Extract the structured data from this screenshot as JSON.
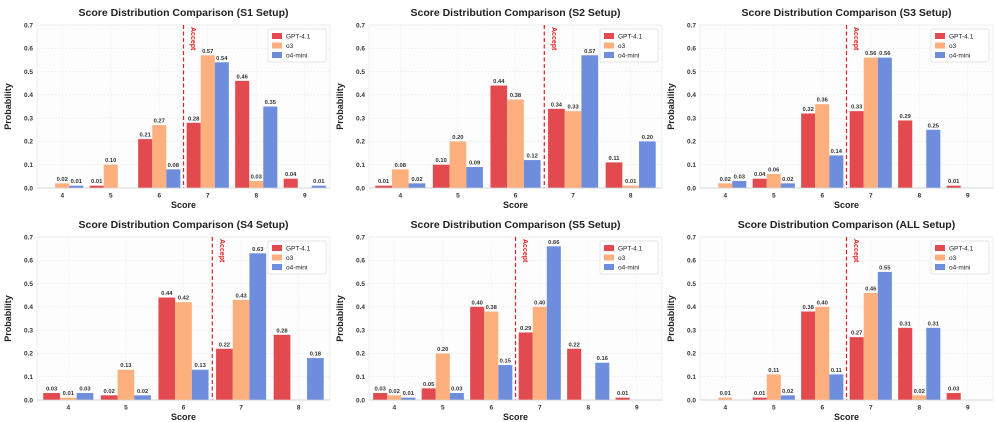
{
  "colors": {
    "GPT-4.1": "#e24a4f",
    "o3": "#fdb07e",
    "o4-mini": "#6f8ddd",
    "accept_line": "#e02020"
  },
  "chart_data": [
    {
      "type": "bar",
      "title": "Score Distribution Comparison (S1 Setup)",
      "xlabel": "Score",
      "ylabel": "Probability",
      "ylim": [
        0,
        0.7
      ],
      "yticks": [
        "0.0",
        "0.1",
        "0.2",
        "0.3",
        "0.4",
        "0.5",
        "0.6",
        "0.7"
      ],
      "categories": [
        "4",
        "5",
        "6",
        "7",
        "8",
        "9"
      ],
      "accept_label": "Accept",
      "accept_position": 6.5,
      "legend_position": "top-right",
      "series": [
        {
          "name": "GPT-4.1",
          "values": [
            null,
            0.01,
            0.21,
            0.28,
            0.46,
            0.04
          ],
          "labels": [
            "",
            "0.01",
            "0.21",
            "0.28",
            "0.46",
            "0.04"
          ]
        },
        {
          "name": "o3",
          "values": [
            0.02,
            0.1,
            0.27,
            0.57,
            0.03,
            null
          ],
          "labels": [
            "0.02",
            "0.10",
            "0.27",
            "0.57",
            "0.03",
            ""
          ]
        },
        {
          "name": "o4-mini",
          "values": [
            0.01,
            null,
            0.08,
            0.54,
            0.35,
            0.01
          ],
          "labels": [
            "0.01",
            "",
            "0.08",
            "0.54",
            "0.35",
            "0.01"
          ]
        }
      ]
    },
    {
      "type": "bar",
      "title": "Score Distribution Comparison (S2 Setup)",
      "xlabel": "Score",
      "ylabel": "Probability",
      "ylim": [
        0,
        0.7
      ],
      "yticks": [
        "0.0",
        "0.1",
        "0.2",
        "0.3",
        "0.4",
        "0.5",
        "0.6",
        "0.7"
      ],
      "categories": [
        "4",
        "5",
        "6",
        "7",
        "8"
      ],
      "accept_label": "Accept",
      "accept_position": 6.5,
      "legend_position": "top-right",
      "series": [
        {
          "name": "GPT-4.1",
          "values": [
            0.01,
            0.1,
            0.44,
            0.34,
            0.11
          ],
          "labels": [
            "0.01",
            "0.10",
            "0.44",
            "0.34",
            "0.11"
          ]
        },
        {
          "name": "o3",
          "values": [
            0.08,
            0.2,
            0.38,
            0.33,
            0.01
          ],
          "labels": [
            "0.08",
            "0.20",
            "0.38",
            "0.33",
            "0.01"
          ]
        },
        {
          "name": "o4-mini",
          "values": [
            0.02,
            0.09,
            0.12,
            0.57,
            0.2
          ],
          "labels": [
            "0.02",
            "0.09",
            "0.12",
            "0.57",
            "0.20"
          ]
        }
      ]
    },
    {
      "type": "bar",
      "title": "Score Distribution Comparison (S3 Setup)",
      "xlabel": "Score",
      "ylabel": "Probability",
      "ylim": [
        0,
        0.7
      ],
      "yticks": [
        "0.0",
        "0.1",
        "0.2",
        "0.3",
        "0.4",
        "0.5",
        "0.6",
        "0.7"
      ],
      "categories": [
        "4",
        "5",
        "6",
        "7",
        "8",
        "9"
      ],
      "accept_label": "Accept",
      "accept_position": 6.5,
      "legend_position": "top-right",
      "series": [
        {
          "name": "GPT-4.1",
          "values": [
            null,
            0.04,
            0.32,
            0.33,
            0.29,
            0.01
          ],
          "labels": [
            "",
            "0.04",
            "0.32",
            "0.33",
            "0.29",
            "0.01"
          ]
        },
        {
          "name": "o3",
          "values": [
            0.02,
            0.06,
            0.36,
            0.56,
            null,
            null
          ],
          "labels": [
            "0.02",
            "0.06",
            "0.36",
            "0.56",
            "",
            ""
          ]
        },
        {
          "name": "o4-mini",
          "values": [
            0.03,
            0.02,
            0.14,
            0.56,
            0.25,
            null
          ],
          "labels": [
            "0.03",
            "0.02",
            "0.14",
            "0.56",
            "0.25",
            ""
          ]
        }
      ]
    },
    {
      "type": "bar",
      "title": "Score Distribution Comparison (S4 Setup)",
      "xlabel": "Score",
      "ylabel": "Probability",
      "ylim": [
        0,
        0.7
      ],
      "yticks": [
        "0.0",
        "0.1",
        "0.2",
        "0.3",
        "0.4",
        "0.5",
        "0.6",
        "0.7"
      ],
      "categories": [
        "4",
        "5",
        "6",
        "7",
        "8"
      ],
      "accept_label": "Accept",
      "accept_position": 6.5,
      "legend_position": "top-right",
      "series": [
        {
          "name": "GPT-4.1",
          "values": [
            0.03,
            0.02,
            0.44,
            0.22,
            0.28
          ],
          "labels": [
            "0.03",
            "0.02",
            "0.44",
            "0.22",
            "0.28"
          ]
        },
        {
          "name": "o3",
          "values": [
            0.01,
            0.13,
            0.42,
            0.43,
            null
          ],
          "labels": [
            "0.01",
            "0.13",
            "0.42",
            "0.43",
            ""
          ]
        },
        {
          "name": "o4-mini",
          "values": [
            0.03,
            0.02,
            0.13,
            0.63,
            0.18
          ],
          "labels": [
            "0.03",
            "0.02",
            "0.13",
            "0.63",
            "0.18"
          ]
        }
      ]
    },
    {
      "type": "bar",
      "title": "Score Distribution Comparison (S5 Setup)",
      "xlabel": "Score",
      "ylabel": "Probability",
      "ylim": [
        0,
        0.7
      ],
      "yticks": [
        "0.0",
        "0.1",
        "0.2",
        "0.3",
        "0.4",
        "0.5",
        "0.6",
        "0.7"
      ],
      "categories": [
        "4",
        "5",
        "6",
        "7",
        "8",
        "9"
      ],
      "accept_label": "Accept",
      "accept_position": 6.5,
      "legend_position": "top-right",
      "series": [
        {
          "name": "GPT-4.1",
          "values": [
            0.03,
            0.05,
            0.4,
            0.29,
            0.22,
            0.01
          ],
          "labels": [
            "0.03",
            "0.05",
            "0.40",
            "0.29",
            "0.22",
            "0.01"
          ]
        },
        {
          "name": "o3",
          "values": [
            0.02,
            0.2,
            0.38,
            0.4,
            null,
            null
          ],
          "labels": [
            "0.02",
            "0.20",
            "0.38",
            "0.40",
            "",
            ""
          ]
        },
        {
          "name": "o4-mini",
          "values": [
            0.01,
            0.03,
            0.15,
            0.66,
            0.16,
            null
          ],
          "labels": [
            "0.01",
            "0.03",
            "0.15",
            "0.66",
            "0.16",
            ""
          ]
        }
      ]
    },
    {
      "type": "bar",
      "title": "Score Distribution Comparison (ALL Setup)",
      "xlabel": "Score",
      "ylabel": "Probability",
      "ylim": [
        0,
        0.7
      ],
      "yticks": [
        "0.0",
        "0.1",
        "0.2",
        "0.3",
        "0.4",
        "0.5",
        "0.6",
        "0.7"
      ],
      "categories": [
        "4",
        "5",
        "6",
        "7",
        "8",
        "9"
      ],
      "accept_label": "Accept",
      "accept_position": 6.5,
      "legend_position": "top-right",
      "series": [
        {
          "name": "GPT-4.1",
          "values": [
            null,
            0.01,
            0.38,
            0.27,
            0.31,
            0.03
          ],
          "labels": [
            "",
            "0.01",
            "0.38",
            "0.27",
            "0.31",
            "0.03"
          ]
        },
        {
          "name": "o3",
          "values": [
            0.01,
            0.11,
            0.4,
            0.46,
            0.02,
            null
          ],
          "labels": [
            "0.01",
            "0.11",
            "0.40",
            "0.46",
            "0.02",
            ""
          ]
        },
        {
          "name": "o4-mini",
          "values": [
            null,
            0.02,
            0.11,
            0.55,
            0.31,
            null
          ],
          "labels": [
            "",
            "0.02",
            "0.11",
            "0.55",
            "0.31",
            ""
          ]
        }
      ]
    }
  ]
}
